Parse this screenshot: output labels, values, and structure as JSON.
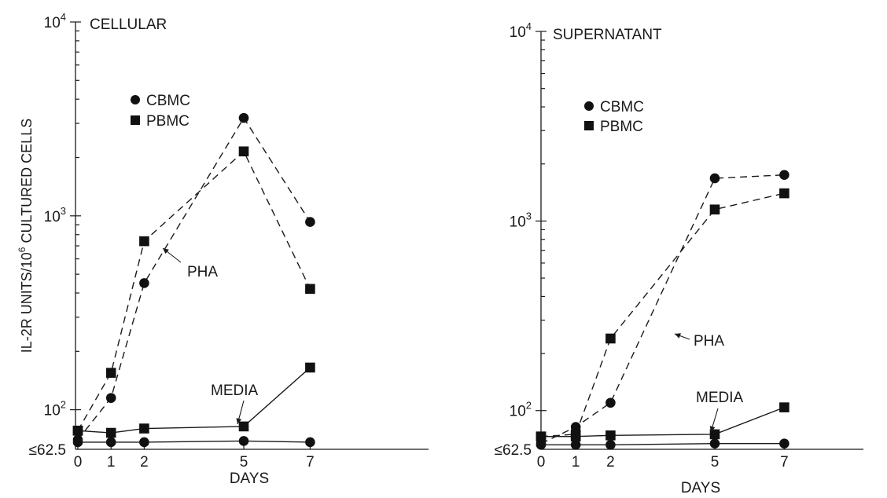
{
  "chart_data": [
    {
      "type": "line",
      "title": "CELLULAR",
      "xlabel": "DAYS",
      "ylabel": "IL-2R UNITS/10⁶ CULTURED CELLS",
      "yscale": "log",
      "ylim": [
        62.5,
        10000
      ],
      "xlim": [
        0,
        10
      ],
      "x": [
        0,
        1,
        2,
        5,
        7
      ],
      "x_ticks": [
        "0",
        "1",
        "2",
        "5",
        "7"
      ],
      "y_ticks": [
        {
          "value": 62.5,
          "label": "≤62.5"
        },
        {
          "value": 100,
          "label": "10²"
        },
        {
          "value": 1000,
          "label": "10³"
        },
        {
          "value": 10000,
          "label": "10⁴"
        }
      ],
      "legend": {
        "placement": "top-left",
        "entries": [
          {
            "name": "CBMC",
            "marker": "circle"
          },
          {
            "name": "PBMC",
            "marker": "square"
          }
        ]
      },
      "series": [
        {
          "name": "CBMC",
          "condition": "PHA",
          "marker": "circle",
          "line": "dashed",
          "values": [
            70,
            115,
            450,
            3200,
            930
          ]
        },
        {
          "name": "PBMC",
          "condition": "PHA",
          "marker": "square",
          "line": "dashed",
          "values": [
            78,
            155,
            740,
            2150,
            420
          ]
        },
        {
          "name": "CBMC",
          "condition": "MEDIA",
          "marker": "circle",
          "line": "solid",
          "values": [
            68,
            68,
            68,
            69,
            68
          ]
        },
        {
          "name": "PBMC",
          "condition": "MEDIA",
          "marker": "square",
          "line": "solid",
          "values": [
            78,
            76,
            80,
            82,
            165
          ]
        }
      ],
      "annotations": [
        {
          "text": "PHA",
          "target": "PHA"
        },
        {
          "text": "MEDIA",
          "target": "MEDIA"
        }
      ]
    },
    {
      "type": "line",
      "title": "SUPERNATANT",
      "xlabel": "DAYS",
      "ylabel": "",
      "yscale": "log",
      "ylim": [
        62.5,
        10000
      ],
      "xlim": [
        0,
        10
      ],
      "x": [
        0,
        1,
        2,
        5,
        7
      ],
      "x_ticks": [
        "0",
        "1",
        "2",
        "5",
        "7"
      ],
      "y_ticks": [
        {
          "value": 62.5,
          "label": "≤62.5"
        },
        {
          "value": 100,
          "label": "10²"
        },
        {
          "value": 1000,
          "label": "10³"
        },
        {
          "value": 10000,
          "label": "10⁴"
        }
      ],
      "legend": {
        "placement": "top-left",
        "entries": [
          {
            "name": "CBMC",
            "marker": "circle"
          },
          {
            "name": "PBMC",
            "marker": "square"
          }
        ]
      },
      "series": [
        {
          "name": "CBMC",
          "condition": "PHA",
          "marker": "circle",
          "line": "dashed",
          "values": [
            67,
            82,
            110,
            1680,
            1750
          ]
        },
        {
          "name": "PBMC",
          "condition": "PHA",
          "marker": "square",
          "line": "dashed",
          "values": [
            73,
            75,
            240,
            1150,
            1400
          ]
        },
        {
          "name": "CBMC",
          "condition": "MEDIA",
          "marker": "circle",
          "line": "solid",
          "values": [
            66,
            66,
            66,
            67,
            67
          ]
        },
        {
          "name": "PBMC",
          "condition": "MEDIA",
          "marker": "square",
          "line": "solid",
          "values": [
            73,
            73,
            74,
            75,
            104
          ]
        }
      ],
      "annotations": [
        {
          "text": "PHA",
          "target": "PHA"
        },
        {
          "text": "MEDIA",
          "target": "MEDIA"
        }
      ]
    }
  ]
}
